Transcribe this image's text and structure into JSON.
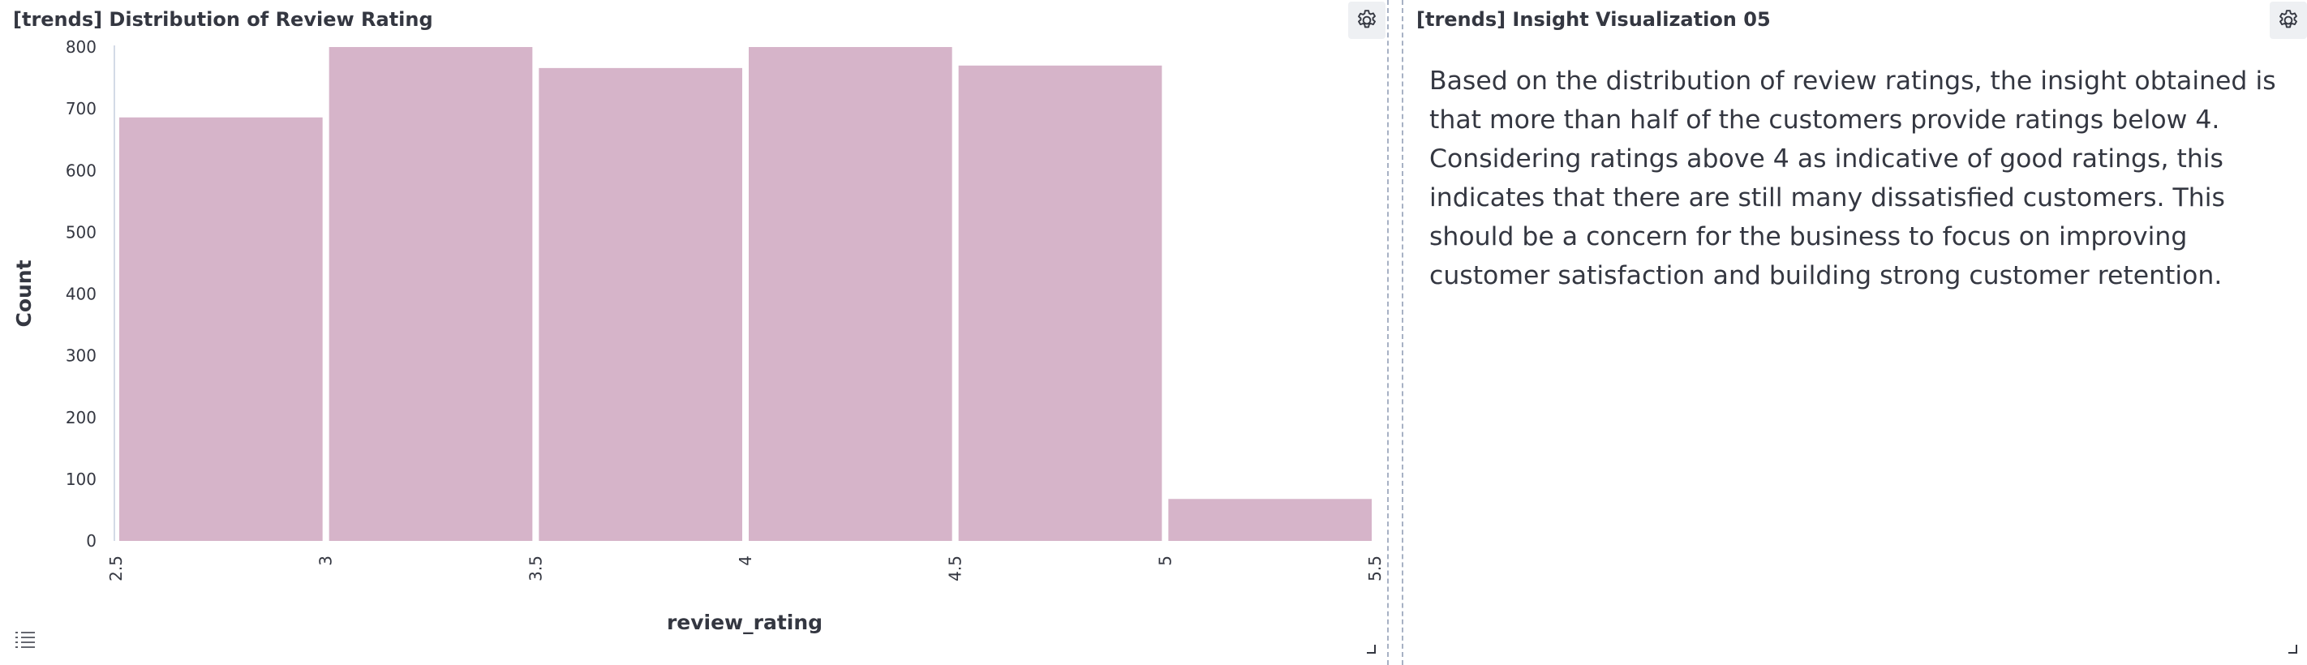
{
  "left_panel": {
    "title": "[trends] Distribution of Review Rating",
    "settings_icon": "gear-icon",
    "legend_icon": "list-icon"
  },
  "right_panel": {
    "title": "[trends] Insight Visualization 05",
    "settings_icon": "gear-icon",
    "body_text": "Based on the distribution of review ratings, the insight obtained is that more than half of the customers provide ratings below 4. Considering ratings above 4 as indicative of good ratings, this indicates that there are still many dissatisfied customers. This should be a concern for the business to focus on improving customer satisfaction and building strong customer retention."
  },
  "colors": {
    "bar": "#d6b4c9",
    "axis": "#98a2b3",
    "text": "#343741"
  },
  "chart_data": {
    "type": "bar",
    "title": "",
    "xlabel": "review_rating",
    "ylabel": "Count",
    "bins": [
      [
        2.5,
        3
      ],
      [
        3,
        3.5
      ],
      [
        3.5,
        4
      ],
      [
        4,
        4.5
      ],
      [
        4.5,
        5
      ],
      [
        5,
        5.5
      ]
    ],
    "values": [
      686,
      804,
      766,
      804,
      770,
      68
    ],
    "x_ticks": [
      "2.5",
      "3",
      "3.5",
      "4",
      "4.5",
      "5",
      "5.5"
    ],
    "y_ticks": [
      "0",
      "100",
      "200",
      "300",
      "400",
      "500",
      "600",
      "700",
      "800"
    ],
    "xlim": [
      2.5,
      5.5
    ],
    "ylim": [
      0,
      800
    ],
    "grid": false,
    "legend": "none"
  }
}
